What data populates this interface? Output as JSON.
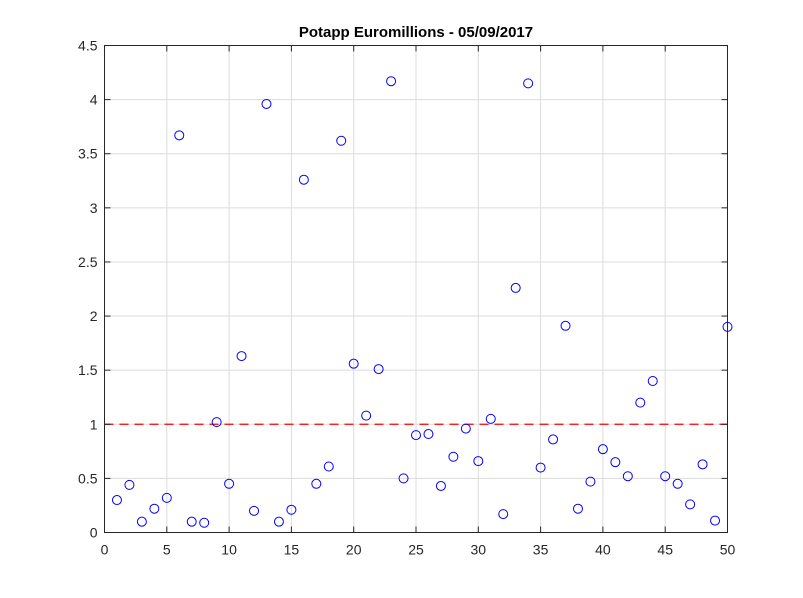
{
  "chart_data": {
    "type": "scatter",
    "title": "Potapp Euromillions - 05/09/2017",
    "xlabel": "",
    "ylabel": "",
    "xlim": [
      0,
      50
    ],
    "ylim": [
      0,
      4.5
    ],
    "xticks": [
      "0",
      "5",
      "10",
      "15",
      "20",
      "25",
      "30",
      "35",
      "40",
      "45",
      "50"
    ],
    "yticks": [
      "0",
      "0.5",
      "1",
      "1.5",
      "2",
      "2.5",
      "3",
      "3.5",
      "4",
      "4.5"
    ],
    "grid": true,
    "marker_color": "#0000ff",
    "reference_line": {
      "y": 1,
      "style": "dashed",
      "color": "#ff0000"
    },
    "series": [
      {
        "x": [
          1,
          2,
          3,
          4,
          5,
          6,
          7,
          8,
          9,
          10,
          11,
          12,
          13,
          14,
          15,
          16,
          17,
          18,
          19,
          20,
          21,
          22,
          23,
          24,
          25,
          26,
          27,
          28,
          29,
          30,
          31,
          32,
          33,
          34,
          35,
          36,
          37,
          38,
          39,
          40,
          41,
          42,
          43,
          44,
          45,
          46,
          47,
          48,
          49,
          50
        ],
        "values": [
          0.3,
          0.44,
          0.1,
          0.22,
          0.32,
          3.67,
          0.1,
          0.09,
          1.02,
          0.45,
          1.63,
          0.2,
          3.96,
          0.1,
          0.21,
          3.26,
          0.45,
          0.61,
          3.62,
          1.56,
          1.08,
          1.51,
          4.17,
          0.5,
          0.9,
          0.91,
          0.43,
          0.7,
          0.96,
          0.66,
          1.05,
          0.17,
          2.26,
          4.15,
          0.6,
          0.86,
          1.91,
          0.22,
          0.47,
          0.77,
          0.65,
          0.52,
          1.2,
          1.4,
          0.52,
          0.45,
          0.26,
          0.63,
          0.11,
          1.9
        ]
      }
    ]
  }
}
